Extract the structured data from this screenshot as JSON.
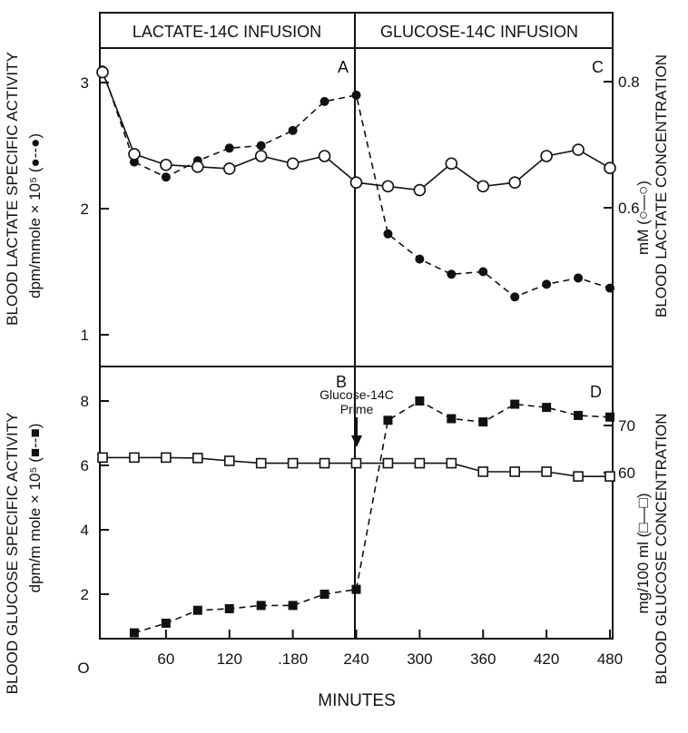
{
  "chart_data": [
    {
      "type": "line",
      "panel_label_left": "A",
      "panel_label_right": "C",
      "banner_left": "LACTATE-14C INFUSION",
      "banner_right": "GLUCOSE-14C INFUSION",
      "ylabel_left_line1": "BLOOD LACTATE SPECIFIC ACTIVITY",
      "ylabel_left_line2": "dpm/mmole × 10⁵ (●--●)",
      "ylabel_right_line1": "BLOOD LACTATE CONCENTRATION",
      "ylabel_right_line2": "mM (○—○)",
      "ylim_left": [
        0.5,
        3.3
      ],
      "yticks_left": [
        "1",
        "2",
        "3"
      ],
      "ylim_right": [
        0.4,
        0.86
      ],
      "yticks_right": [
        "0.6",
        "0.8"
      ],
      "xlim": [
        0,
        480
      ],
      "series": [
        {
          "marker": "filled-circle",
          "style": "dashed",
          "axis": "left",
          "x": [
            0,
            30,
            60,
            90,
            120,
            150,
            180,
            210,
            240,
            270,
            300,
            330,
            360,
            390,
            420,
            450,
            480
          ],
          "values": [
            3.1,
            2.37,
            2.25,
            2.38,
            2.48,
            2.5,
            2.62,
            2.85,
            2.9,
            1.8,
            1.6,
            1.48,
            1.5,
            1.3,
            1.4,
            1.45,
            1.37
          ]
        },
        {
          "marker": "open-circle",
          "style": "solid",
          "axis": "right",
          "x": [
            0,
            30,
            60,
            90,
            120,
            150,
            180,
            210,
            240,
            270,
            300,
            330,
            360,
            390,
            420,
            450,
            480
          ],
          "values": [
            0.815,
            0.685,
            0.668,
            0.665,
            0.662,
            0.682,
            0.67,
            0.682,
            0.64,
            0.634,
            0.628,
            0.67,
            0.634,
            0.64,
            0.682,
            0.692,
            0.663
          ]
        }
      ]
    },
    {
      "type": "line",
      "panel_label_left": "B",
      "panel_label_right": "D",
      "annotation_line1": "Glucose-14C",
      "annotation_line2": "Prime",
      "ylabel_left_line1": "BLOOD GLUCOSE SPECIFIC ACTIVITY",
      "ylabel_left_line2": "dpm/m mole × 10⁵ (■--■)",
      "ylabel_right_line1": "BLOOD GLUCOSE CONCENTRATION",
      "ylabel_right_line2": "mg/100 ml (□—□)",
      "xlabel": "MINUTES",
      "xticks": [
        "60",
        "120",
        ".180",
        "240",
        "300",
        "360",
        "420",
        "480"
      ],
      "x_origin_label": "O",
      "ylim_left": [
        0,
        9
      ],
      "yticks_left": [
        "2",
        "4",
        "6",
        "8"
      ],
      "ylim_right": [
        20,
        75
      ],
      "yticks_right": [
        "60",
        "70"
      ],
      "xlim": [
        0,
        480
      ],
      "series": [
        {
          "marker": "filled-square",
          "style": "dashed",
          "axis": "left",
          "x": [
            30,
            60,
            90,
            120,
            150,
            180,
            210,
            240,
            270,
            300,
            330,
            360,
            390,
            420,
            450,
            480
          ],
          "values": [
            0.8,
            1.1,
            1.5,
            1.55,
            1.65,
            1.65,
            2.0,
            2.15,
            7.4,
            8.0,
            7.45,
            7.35,
            7.9,
            7.8,
            7.55,
            7.5
          ]
        },
        {
          "marker": "open-square",
          "style": "solid",
          "axis": "right",
          "x": [
            0,
            30,
            60,
            90,
            120,
            150,
            180,
            210,
            240,
            270,
            300,
            330,
            360,
            390,
            420,
            450,
            480
          ],
          "values": [
            63.2,
            63.2,
            63.2,
            63.1,
            62.5,
            62.0,
            62.0,
            62.0,
            62.0,
            62.0,
            62.0,
            62.0,
            60.2,
            60.2,
            60.2,
            59.2,
            59.2
          ]
        }
      ]
    }
  ]
}
